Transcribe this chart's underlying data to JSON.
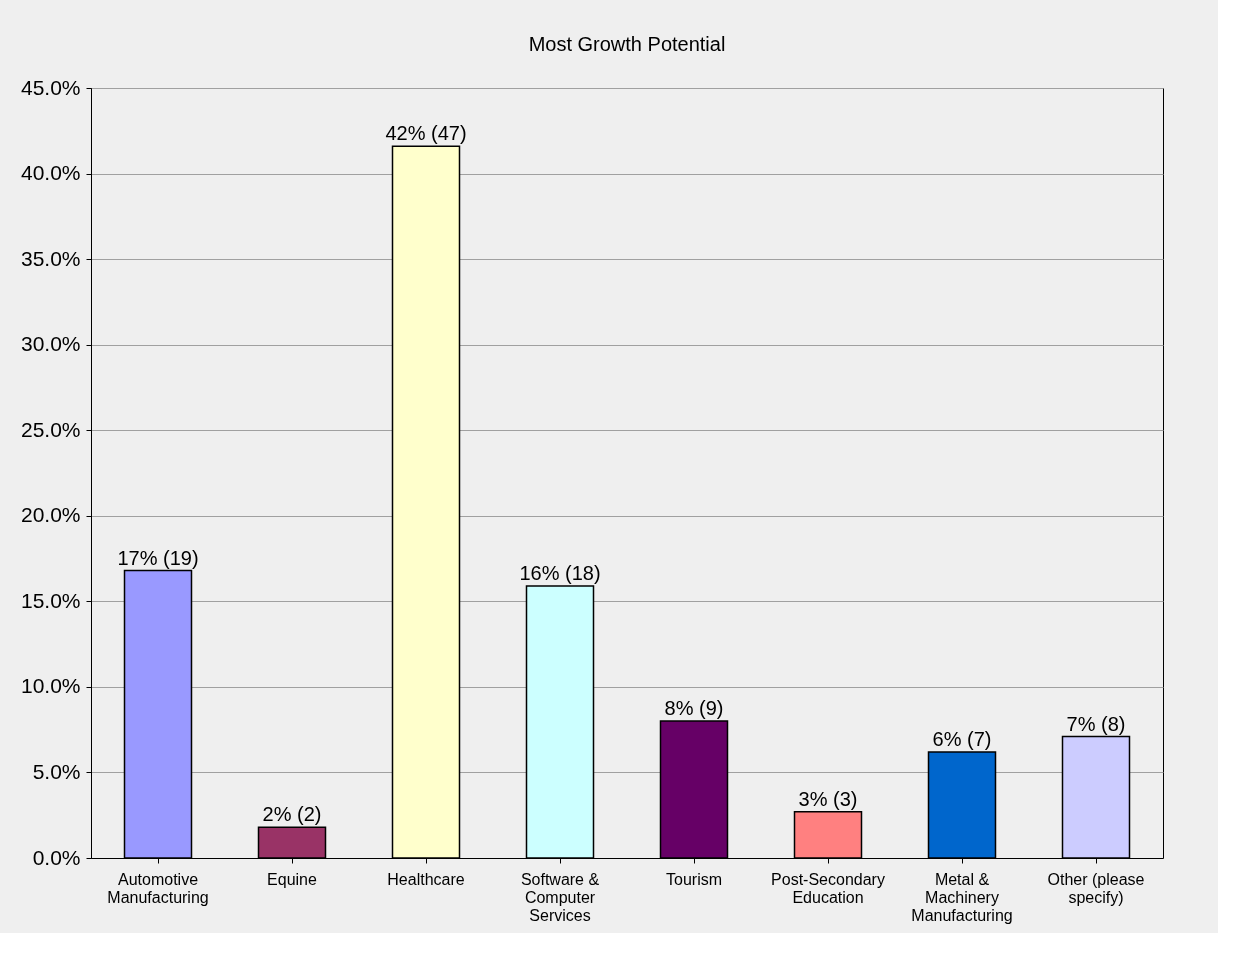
{
  "chart_data": {
    "type": "bar",
    "title": "Most Growth Potential",
    "categories": [
      "Automotive\nManufacturing",
      "Equine",
      "Healthcare",
      "Software &\nComputer\nServices",
      "Tourism",
      "Post-Secondary\nEducation",
      "Metal &\nMachinery\nManufacturing",
      "Other (please\nspecify)"
    ],
    "values": [
      16.8,
      1.8,
      41.6,
      15.9,
      8.0,
      2.7,
      6.2,
      7.1
    ],
    "colors": [
      "#9999ff",
      "#993366",
      "#ffffcc",
      "#ccffff",
      "#660066",
      "#ff8080",
      "#0066cc",
      "#ccccff"
    ],
    "value_labels": [
      "17% (19)",
      "2% (2)",
      "42% (47)",
      "16% (18)",
      "8% (9)",
      "3% (3)",
      "6% (7)",
      "7% (8)"
    ],
    "ylim": [
      0,
      45
    ],
    "yticks": [
      {
        "value": 0,
        "label": "0.0%"
      },
      {
        "value": 5,
        "label": "5.0%"
      },
      {
        "value": 10,
        "label": "10.0%"
      },
      {
        "value": 15,
        "label": "15.0%"
      },
      {
        "value": 20,
        "label": "20.0%"
      },
      {
        "value": 25,
        "label": "25.0%"
      },
      {
        "value": 30,
        "label": "30.0%"
      },
      {
        "value": 35,
        "label": "35.0%"
      },
      {
        "value": 40,
        "label": "40.0%"
      },
      {
        "value": 45,
        "label": "45.0%"
      }
    ],
    "grid": "y"
  }
}
